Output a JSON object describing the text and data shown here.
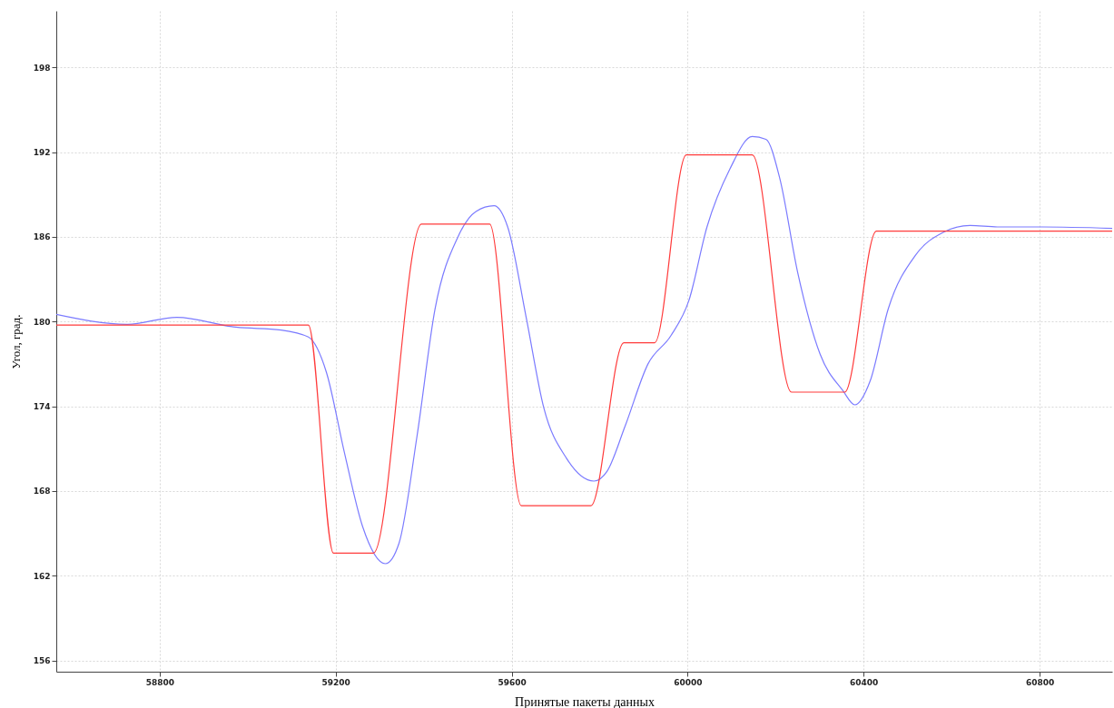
{
  "chart_data": {
    "type": "line",
    "xlabel": "Принятые пакеты данных",
    "ylabel": "Угол, град.",
    "xlim": [
      58565,
      60965
    ],
    "xticks": [
      58800,
      59200,
      59600,
      60000,
      60400,
      60800
    ],
    "ylim": [
      155.2,
      202
    ],
    "yticks": [
      156,
      162,
      168,
      174,
      180,
      186,
      192,
      198
    ],
    "grid": true,
    "marker": "none",
    "line_style": "solid",
    "series": [
      {
        "color": "#7b7bff",
        "x": [
          58565,
          58726,
          58839,
          58973,
          59076,
          59138,
          59179,
          59220,
          59261,
          59313,
          59344,
          59385,
          59426,
          59478,
          59519,
          59560,
          59591,
          59633,
          59673,
          59725,
          59787,
          59817,
          59858,
          59910,
          59962,
          60003,
          60044,
          60096,
          60147,
          60178,
          60209,
          60250,
          60301,
          60353,
          60380,
          60415,
          60456,
          60518,
          60580,
          60642,
          60704,
          60806,
          60965
        ],
        "values": [
          180.5,
          179.8,
          180.3,
          179.6,
          179.4,
          178.9,
          176.4,
          170.7,
          165.5,
          162.85,
          164.3,
          171.9,
          180.9,
          186,
          187.8,
          188.2,
          186.7,
          180.3,
          173.9,
          170.3,
          168.7,
          169.4,
          172.6,
          177,
          179,
          181.5,
          186.7,
          190.8,
          193.1,
          192.9,
          190.2,
          183.5,
          177.7,
          175.1,
          174.1,
          175.8,
          180.9,
          184.7,
          186.3,
          186.8,
          186.7,
          186.7,
          186.6
        ]
      },
      {
        "color": "#ff3b3b",
        "x": [
          58565,
          59138,
          59195,
          59286,
          59395,
          59550,
          59622,
          59780,
          59855,
          59925,
          59997,
          60147,
          60236,
          60357,
          60429,
          60965
        ],
        "values": [
          179.75,
          179.75,
          163.6,
          163.6,
          186.9,
          186.9,
          166.95,
          166.95,
          178.5,
          178.5,
          191.8,
          191.8,
          175,
          175,
          186.4,
          186.4
        ]
      }
    ]
  }
}
